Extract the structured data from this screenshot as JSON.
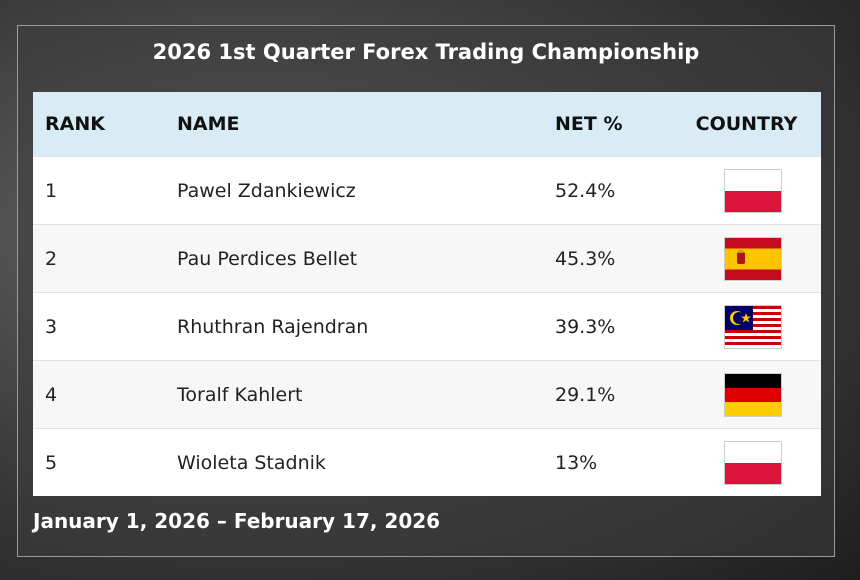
{
  "header": {
    "title": "2026 1st Quarter Forex Trading Championship"
  },
  "table": {
    "columns": [
      "RANK",
      "NAME",
      "NET %",
      "COUNTRY"
    ],
    "rows": [
      [
        "1",
        "Pawel Zdankiewicz",
        "52.4%"
      ],
      [
        "2",
        "Pau Perdices Bellet",
        "45.3%"
      ],
      [
        "3",
        "Rhuthran Rajendran",
        "39.3%"
      ],
      [
        "4",
        "Toralf Kahlert",
        "29.1%"
      ],
      [
        "5",
        "Wioleta Stadnik",
        "13%"
      ]
    ]
  },
  "footer": {
    "dates": "January 1, 2026 – February 17, 2026"
  }
}
